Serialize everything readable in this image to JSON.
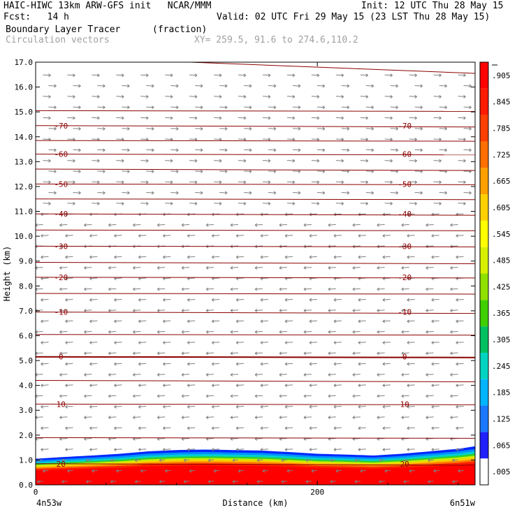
{
  "header": {
    "line1_left": "HAIC-HIWC 13km ARW-GFS init   NCAR/MMM",
    "line1_right": "Init: 12 UTC Thu 28 May 15",
    "line2_left": "Fcst:   14 h",
    "line2_right": "Valid: 02 UTC Fri 29 May 15 (23 LST Thu 28 May 15)",
    "line3_left": "Boundary Layer Tracer",
    "line3_unit": "(fraction)",
    "line4_left": "Circulation vectors",
    "line4_xy": "XY= 259.5, 91.6 to 274.6,110.2"
  },
  "chart_data": {
    "type": "cross-section",
    "xlabel": "Distance (km)",
    "ylabel": "Height (km)",
    "x_tick_labels": [
      "0",
      "200"
    ],
    "x_ticks": [
      0,
      200
    ],
    "xlim": [
      0,
      312
    ],
    "ylim": [
      0,
      17
    ],
    "y_ticks": [
      0.0,
      1.0,
      2.0,
      3.0,
      4.0,
      5.0,
      6.0,
      7.0,
      8.0,
      9.0,
      10.0,
      11.0,
      12.0,
      13.0,
      14.0,
      15.0,
      16.0,
      17.0
    ],
    "y_tick_labels": [
      "0.0",
      "1.0",
      "2.0",
      "3.0",
      "4.0",
      "5.0",
      "6.0",
      "7.0",
      "8.0",
      "9.0",
      "10.0",
      "11.0",
      "12.0",
      "13.0",
      "14.0",
      "15.0",
      "16.0",
      "17.0"
    ],
    "start_location": "4n53w",
    "end_location": "6n51w",
    "colorbar_labels": [
      ".005",
      ".065",
      ".125",
      ".185",
      ".245",
      ".305",
      ".365",
      ".425",
      ".485",
      ".545",
      ".605",
      ".665",
      ".725",
      ".785",
      ".845",
      ".905"
    ],
    "colorbar_colors": [
      "#ffffff",
      "#2020ff",
      "#1a78ff",
      "#00b4ff",
      "#00d4c0",
      "#00c060",
      "#40d000",
      "#90e000",
      "#d8f000",
      "#ffff00",
      "#ffd000",
      "#ffa000",
      "#ff7000",
      "#ff4000",
      "#ff1a00",
      "#ff0000"
    ],
    "temperature_isotherms": [
      {
        "label": "20",
        "h": 0.85,
        "labeled": true
      },
      {
        "label": "",
        "h": 1.9,
        "labeled": false
      },
      {
        "label": "10",
        "h": 3.25,
        "labeled": true
      },
      {
        "label": "",
        "h": 4.2,
        "labeled": false
      },
      {
        "label": "0",
        "h": 5.15,
        "labeled": true
      },
      {
        "label": "",
        "h": 6.05,
        "labeled": false
      },
      {
        "label": "-10",
        "h": 6.95,
        "labeled": true
      },
      {
        "label": "",
        "h": 7.7,
        "labeled": false
      },
      {
        "label": "-20",
        "h": 8.35,
        "labeled": true
      },
      {
        "label": "",
        "h": 8.95,
        "labeled": false
      },
      {
        "label": "-30",
        "h": 9.6,
        "labeled": true
      },
      {
        "label": "",
        "h": 10.25,
        "labeled": false
      },
      {
        "label": "-40",
        "h": 10.9,
        "labeled": true
      },
      {
        "label": "",
        "h": 11.5,
        "labeled": false
      },
      {
        "label": "-50",
        "h": 12.1,
        "labeled": true
      },
      {
        "label": "",
        "h": 12.7,
        "labeled": false
      },
      {
        "label": "-60",
        "h": 13.3,
        "labeled": true
      },
      {
        "label": "",
        "h": 13.85,
        "labeled": false
      },
      {
        "label": "-70",
        "h": 14.45,
        "labeled": true
      },
      {
        "label": "",
        "h": 15.05,
        "labeled": false
      }
    ],
    "tracer_top_profile": {
      "x": [
        0,
        20,
        40,
        60,
        80,
        100,
        120,
        140,
        160,
        180,
        200,
        220,
        240,
        260,
        280,
        300,
        312
      ],
      "h": [
        1.05,
        1.12,
        1.18,
        1.25,
        1.35,
        1.4,
        1.42,
        1.4,
        1.38,
        1.32,
        1.25,
        1.22,
        1.18,
        1.25,
        1.35,
        1.45,
        1.55
      ]
    }
  }
}
